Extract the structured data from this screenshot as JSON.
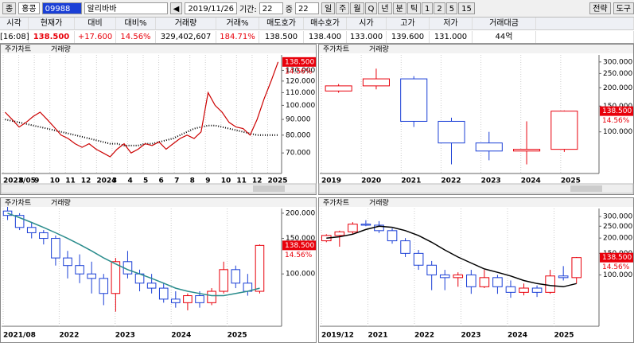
{
  "toolbar": {
    "type_label": "종",
    "market": "홍콩",
    "code": "09988",
    "name": "알리바바",
    "date": "2019/11/26",
    "period_label": "기간:",
    "period": "22",
    "mid_label": "중",
    "mid": "22",
    "units": [
      "일",
      "주",
      "월",
      "Q",
      "년",
      "분",
      "틱",
      "1",
      "2",
      "5",
      "15"
    ],
    "menu": [
      "전략",
      "도구"
    ]
  },
  "quote": {
    "headers": [
      "시각",
      "현재가",
      "대비",
      "대비%",
      "거래량",
      "거래%",
      "매도호가",
      "매수호가",
      "시가",
      "고가",
      "저가",
      "거래대금"
    ],
    "row": [
      "[16:08]",
      "138.500",
      "+17.600",
      "14.56%",
      "329,402,607",
      "184.71%",
      "138.500",
      "138.400",
      "133.000",
      "139.600",
      "131.000",
      "44억"
    ]
  },
  "panels": [
    {
      "tabs": [
        "주가차트",
        "거래량"
      ],
      "chart": {
        "type": "line",
        "log": true,
        "color": "#cc0000",
        "ma_color": "#000000",
        "ylim": [
          60,
          146
        ],
        "yticks": [
          {
            "value": 130,
            "label": "130.000"
          },
          {
            "value": 120,
            "label": "120.000"
          },
          {
            "value": 110,
            "label": "110.000"
          },
          {
            "value": 100,
            "label": "100.000"
          },
          {
            "value": 90,
            "label": "90.000"
          },
          {
            "value": 80,
            "label": "80.000"
          },
          {
            "value": 70,
            "label": "70.000"
          }
        ],
        "x_labels": [
          "2023/05",
          "8",
          "9",
          "10",
          "11",
          "12",
          "2024",
          "3",
          "4",
          "5",
          "6",
          "7",
          "8",
          "9",
          "10",
          "11",
          "12",
          "2025"
        ],
        "values": [
          95,
          90,
          85,
          88,
          92,
          95,
          90,
          85,
          80,
          78,
          75,
          73,
          75,
          72,
          70,
          68,
          72,
          75,
          70,
          72,
          75,
          74,
          76,
          72,
          75,
          78,
          80,
          78,
          82,
          110,
          100,
          95,
          88,
          85,
          84,
          80,
          90,
          105,
          120,
          138.5
        ],
        "ma": [
          90,
          89,
          88,
          87,
          86,
          85,
          84,
          83,
          82,
          81,
          80,
          79,
          78,
          77,
          76,
          75,
          75,
          74,
          74,
          74,
          75,
          75,
          76,
          77,
          78,
          80,
          82,
          84,
          85,
          86,
          86,
          85,
          84,
          83,
          82,
          81,
          80,
          80,
          80,
          80
        ],
        "last_label": "138.500",
        "change_label": "14.56%"
      }
    },
    {
      "tabs": [
        "주가차트",
        "거래량"
      ],
      "chart": {
        "type": "candle",
        "log": true,
        "up_color": "#e8000b",
        "down_color": "#1a3fd6",
        "ylim": [
          52,
          335
        ],
        "yticks": [
          {
            "value": 300,
            "label": "300.000"
          },
          {
            "value": 250,
            "label": "250.000"
          },
          {
            "value": 200,
            "label": "200.000"
          },
          {
            "value": 150,
            "label": "150.000"
          },
          {
            "value": 100,
            "label": "100.000"
          }
        ],
        "x_labels": [
          "2019",
          "2020",
          "2021",
          "2022",
          "2023",
          "2024",
          "2025"
        ],
        "ohlc": [
          [
            190,
            212,
            185,
            206
          ],
          [
            206,
            270,
            195,
            230
          ],
          [
            230,
            240,
            108,
            118
          ],
          [
            118,
            125,
            60,
            84
          ],
          [
            84,
            100,
            64,
            74
          ],
          [
            74,
            118,
            60,
            76
          ],
          [
            76,
            140,
            73,
            138.5
          ]
        ],
        "last_label": "138.500",
        "change_label": "14.56%"
      }
    },
    {
      "tabs": [
        "주가차트",
        "거래량"
      ],
      "chart": {
        "type": "candle",
        "log": true,
        "up_color": "#e8000b",
        "down_color": "#1a3fd6",
        "ma_color": "#2a8c8c",
        "ylim": [
          55,
          211
        ],
        "yticks": [
          {
            "value": 200,
            "label": "200.000"
          },
          {
            "value": 150,
            "label": "150.000"
          },
          {
            "value": 100,
            "label": "100.000"
          }
        ],
        "x_labels": [
          "2021/08",
          "2022",
          "2023",
          "2024",
          "2025"
        ],
        "ohlc": [
          [
            205,
            215,
            185,
            195
          ],
          [
            195,
            200,
            165,
            170
          ],
          [
            170,
            180,
            150,
            160
          ],
          [
            160,
            165,
            140,
            150
          ],
          [
            150,
            155,
            110,
            120
          ],
          [
            120,
            130,
            95,
            110
          ],
          [
            110,
            125,
            90,
            100
          ],
          [
            100,
            115,
            80,
            95
          ],
          [
            95,
            100,
            70,
            80
          ],
          [
            80,
            120,
            65,
            115
          ],
          [
            115,
            130,
            95,
            100
          ],
          [
            100,
            105,
            82,
            90
          ],
          [
            90,
            100,
            80,
            85
          ],
          [
            85,
            90,
            72,
            75
          ],
          [
            75,
            82,
            68,
            72
          ],
          [
            72,
            80,
            66,
            78
          ],
          [
            78,
            82,
            68,
            72
          ],
          [
            72,
            85,
            70,
            82
          ],
          [
            82,
            115,
            80,
            105
          ],
          [
            105,
            110,
            85,
            90
          ],
          [
            90,
            100,
            78,
            82
          ],
          [
            82,
            140,
            80,
            138.5
          ]
        ],
        "ma": [
          200,
          190,
          180,
          170,
          160,
          150,
          140,
          130,
          120,
          112,
          105,
          100,
          95,
          90,
          85,
          82,
          80,
          78,
          78,
          80,
          82,
          85
        ],
        "last_label": "138.500",
        "change_label": "14.56%"
      }
    },
    {
      "tabs": [
        "주가차트",
        "거래량"
      ],
      "chart": {
        "type": "candle",
        "log": true,
        "up_color": "#e8000b",
        "down_color": "#1a3fd6",
        "ma_color": "#000000",
        "ylim": [
          38,
          349
        ],
        "yticks": [
          {
            "value": 300,
            "label": "300.000"
          },
          {
            "value": 250,
            "label": "250.000"
          },
          {
            "value": 200,
            "label": "200.000"
          },
          {
            "value": 150,
            "label": "150.000"
          },
          {
            "value": 100,
            "label": "100.000"
          }
        ],
        "x_labels": [
          "2019/12",
          "2021",
          "2022",
          "2023",
          "2024",
          "2025"
        ],
        "ohlc": [
          [
            190,
            215,
            185,
            210
          ],
          [
            210,
            230,
            170,
            225
          ],
          [
            225,
            270,
            215,
            260
          ],
          [
            260,
            280,
            250,
            255
          ],
          [
            255,
            275,
            220,
            230
          ],
          [
            230,
            240,
            180,
            190
          ],
          [
            190,
            200,
            140,
            150
          ],
          [
            150,
            160,
            110,
            120
          ],
          [
            120,
            130,
            75,
            100
          ],
          [
            100,
            110,
            75,
            95
          ],
          [
            95,
            105,
            80,
            100
          ],
          [
            100,
            110,
            70,
            80
          ],
          [
            80,
            110,
            78,
            95
          ],
          [
            95,
            100,
            70,
            80
          ],
          [
            80,
            90,
            65,
            72
          ],
          [
            72,
            85,
            68,
            78
          ],
          [
            78,
            82,
            66,
            72
          ],
          [
            72,
            110,
            70,
            98
          ],
          [
            98,
            118,
            90,
            95
          ],
          [
            95,
            140,
            85,
            138.5
          ]
        ],
        "ma": [
          200,
          205,
          215,
          235,
          250,
          245,
          230,
          210,
          185,
          160,
          140,
          125,
          112,
          105,
          98,
          90,
          85,
          82,
          80,
          85
        ],
        "last_label": "138.500",
        "change_label": "14.56%"
      }
    }
  ]
}
